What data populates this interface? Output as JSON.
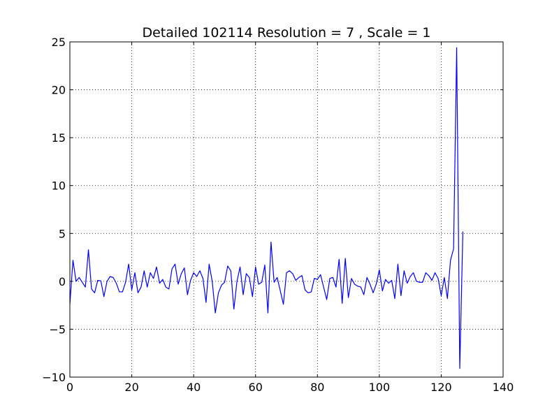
{
  "chart_data": {
    "type": "line",
    "title": "Detailed 102114 Resolution = 7 , Scale = 1",
    "xlabel": "",
    "ylabel": "",
    "xlim": [
      0,
      140
    ],
    "ylim": [
      -10,
      25
    ],
    "xticks": [
      0,
      20,
      40,
      60,
      80,
      100,
      120,
      140
    ],
    "yticks": [
      -10,
      -5,
      0,
      5,
      10,
      15,
      20,
      25
    ],
    "xtick_labels": [
      "0",
      "20",
      "40",
      "60",
      "80",
      "100",
      "120",
      "140"
    ],
    "ytick_labels": [
      "−10",
      "−5",
      "0",
      "5",
      "10",
      "15",
      "20",
      "25"
    ],
    "grid": true,
    "series_color": "#0000ff",
    "series": [
      {
        "values": [
          -2.4,
          2.2,
          0.0,
          0.4,
          -0.1,
          -0.6,
          3.3,
          -0.8,
          -1.2,
          0.1,
          0.05,
          -1.6,
          0.0,
          0.5,
          0.4,
          -0.2,
          -1.1,
          -1.1,
          -0.1,
          1.8,
          -0.9,
          0.9,
          -1.2,
          -0.6,
          1.1,
          -0.6,
          0.9,
          0.3,
          1.5,
          -0.2,
          0.2,
          -0.6,
          -0.8,
          1.3,
          1.8,
          -0.3,
          0.8,
          1.4,
          -1.4,
          0.1,
          0.9,
          0.5,
          1.1,
          0.3,
          -2.2,
          1.8,
          0.0,
          -3.3,
          -1.2,
          -0.4,
          -0.1,
          1.6,
          1.1,
          -2.9,
          0.0,
          1.5,
          -1.4,
          0.8,
          0.4,
          -1.6,
          1.5,
          -0.3,
          -0.1,
          1.7,
          -3.3,
          4.1,
          -0.1,
          0.4,
          -1.0,
          -2.4,
          0.9,
          1.1,
          0.8,
          0.1,
          0.4,
          0.6,
          -0.9,
          -1.2,
          -1.1,
          0.3,
          0.2,
          0.7,
          -0.6,
          -1.9,
          0.3,
          0.4,
          -0.6,
          2.3,
          -2.3,
          2.4,
          -1.7,
          0.3,
          -0.3,
          -0.5,
          -0.6,
          -1.4,
          0.4,
          -0.3,
          -1.2,
          -0.3,
          1.2,
          -1.0,
          0.2,
          -0.2,
          0.1,
          -1.8,
          1.8,
          -1.5,
          1.1,
          -0.2,
          0.5,
          0.9,
          0.0,
          -0.1,
          -0.1,
          0.9,
          0.6,
          0.1,
          0.9,
          0.3,
          -1.5,
          0.4,
          -1.8,
          2.2,
          3.4,
          24.4,
          -9.1,
          5.2
        ]
      }
    ]
  }
}
